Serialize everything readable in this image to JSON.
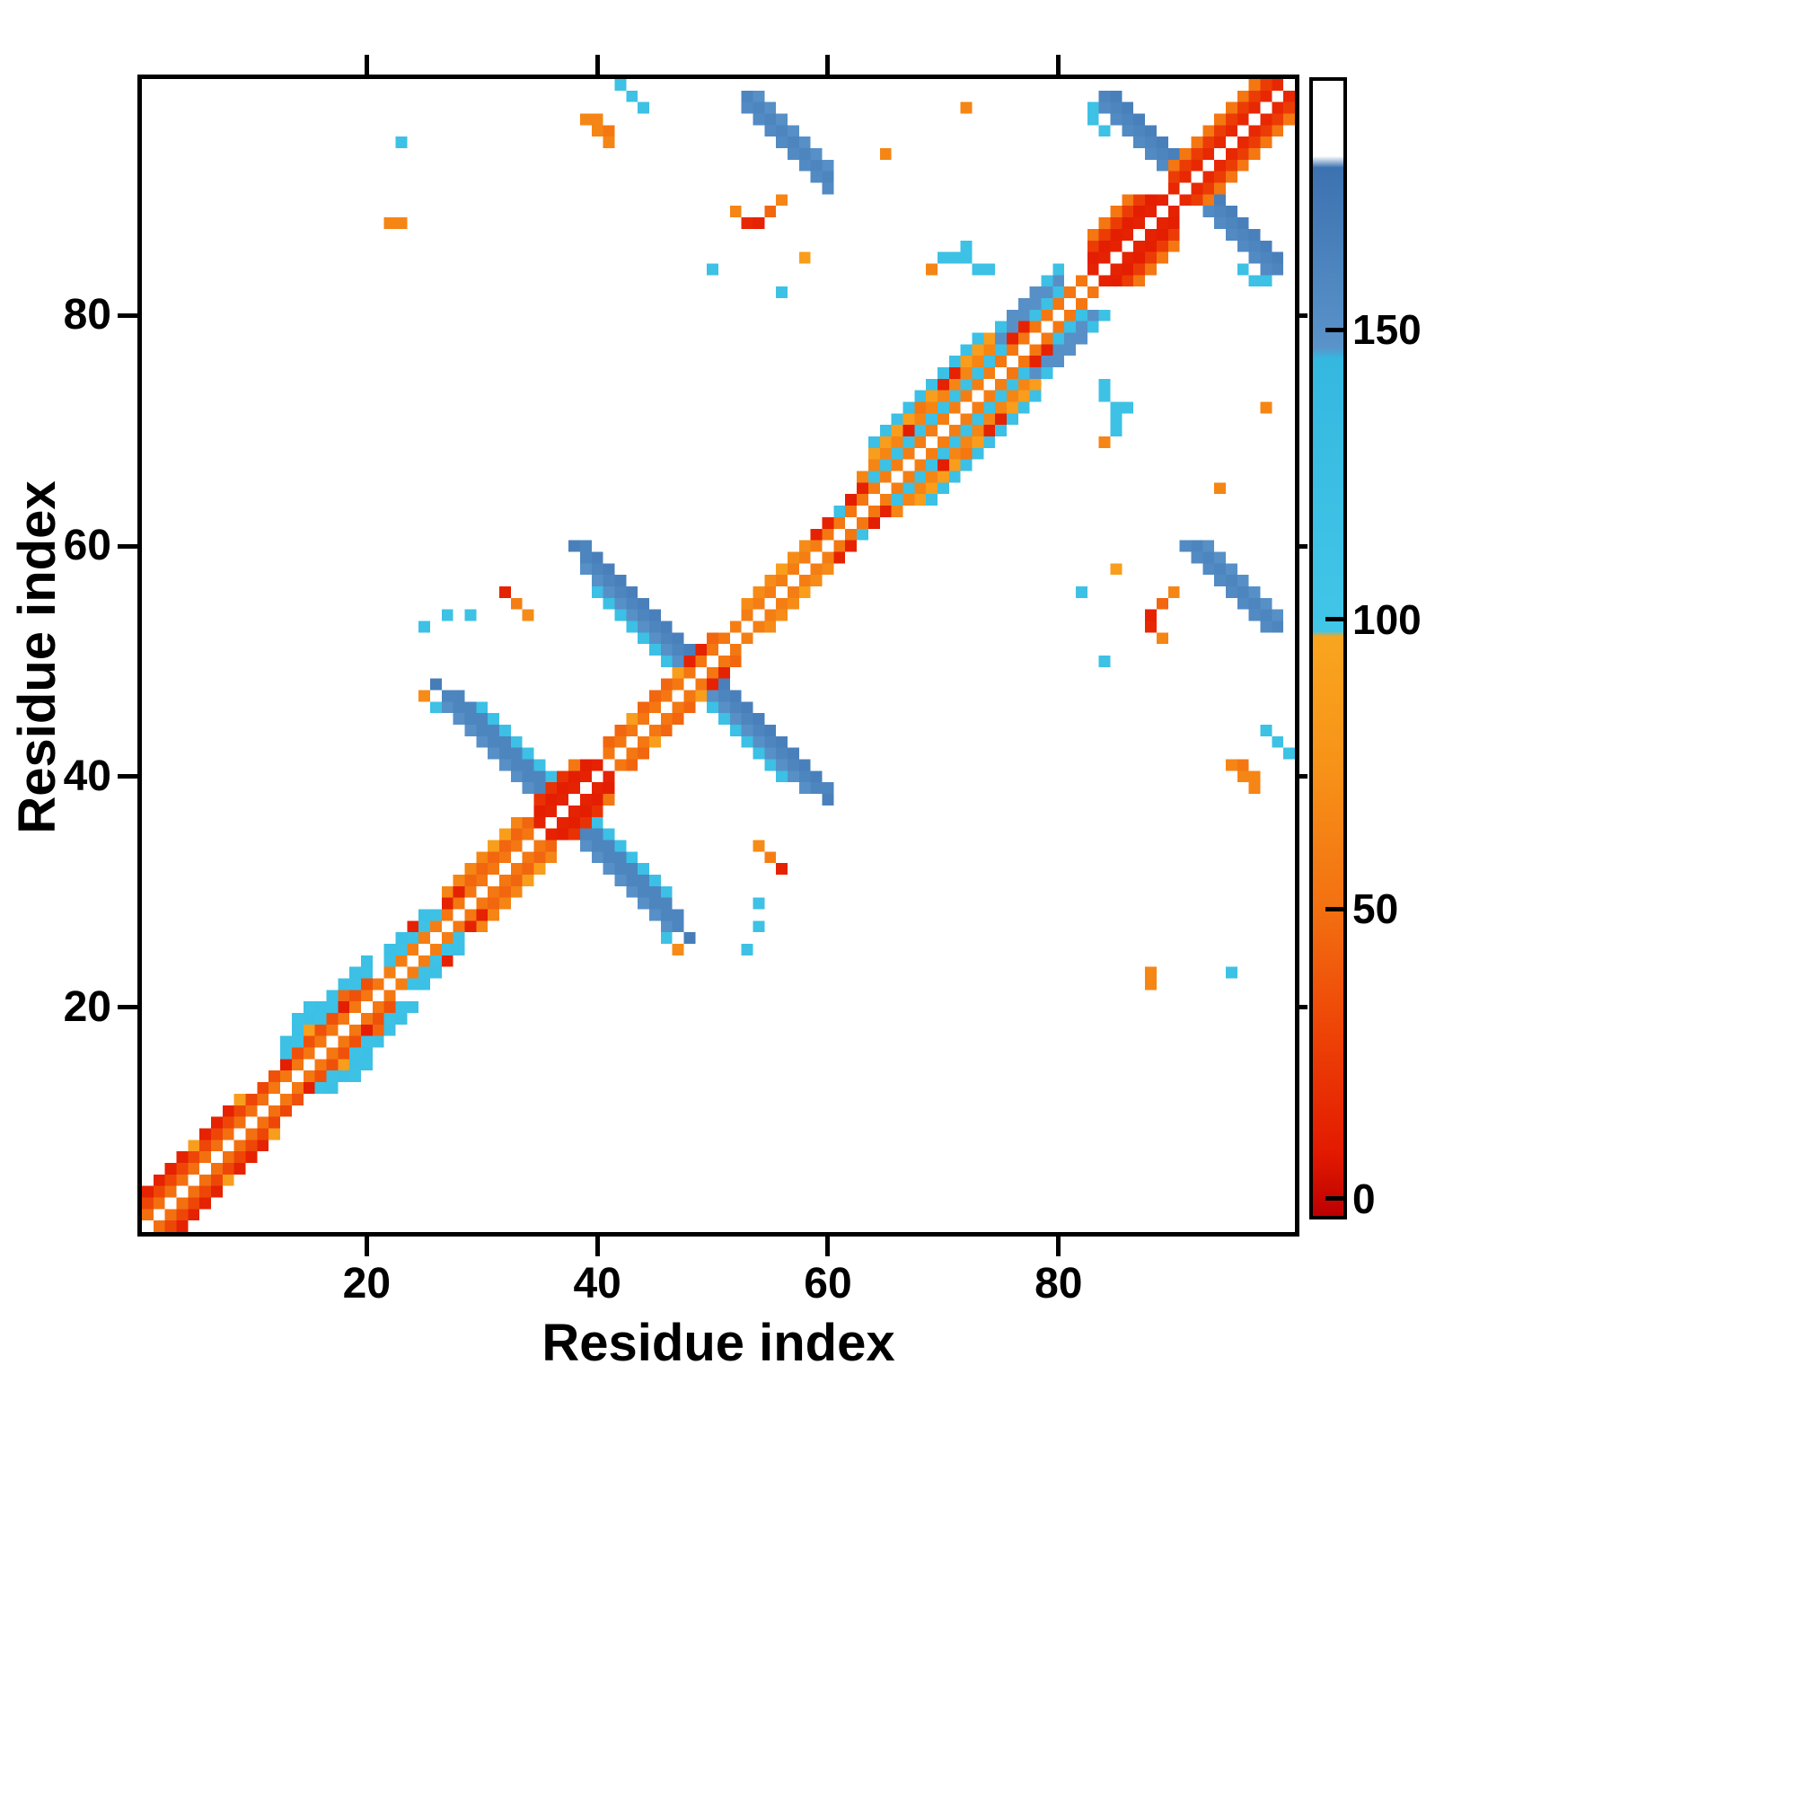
{
  "chart_data": {
    "type": "heatmap",
    "title": "",
    "xlabel": "Residue index",
    "ylabel": "Residue index",
    "x_range": [
      1,
      100
    ],
    "y_range": [
      1,
      100
    ],
    "x_ticks": [
      20,
      40,
      60,
      80
    ],
    "y_ticks": [
      20,
      40,
      60,
      80
    ],
    "grid": false,
    "symmetric": true,
    "empty_color": "#ffffff",
    "colorbar": {
      "position": "right",
      "ticks": [
        0,
        50,
        100,
        150
      ],
      "range": [
        -3,
        193
      ],
      "stops": [
        [
          -3,
          "#bc0000"
        ],
        [
          8,
          "#e31a00"
        ],
        [
          30,
          "#ee4607"
        ],
        [
          50,
          "#f37011"
        ],
        [
          75,
          "#f79318"
        ],
        [
          97,
          "#f9a51f"
        ],
        [
          98,
          "#41c6e8"
        ],
        [
          145,
          "#35b8e0"
        ],
        [
          147,
          "#5a93ca"
        ],
        [
          178,
          "#3c72b0"
        ],
        [
          180,
          "#ffffff"
        ],
        [
          193,
          "#ffffff"
        ]
      ]
    },
    "runs": [
      {
        "i": 27,
        "j": 46,
        "dir": "a",
        "len": 20,
        "v": 150
      },
      {
        "i": 27,
        "j": 47,
        "dir": "a",
        "len": 21,
        "v": 160
      },
      {
        "i": 28,
        "j": 47,
        "dir": "a",
        "len": 20,
        "v": 160
      },
      {
        "i": 30,
        "j": 46,
        "dir": "a",
        "len": 17,
        "v": 118
      },
      {
        "i": 39,
        "j": 58,
        "dir": "a",
        "len": 20,
        "v": 150
      },
      {
        "i": 39,
        "j": 59,
        "dir": "a",
        "len": 21,
        "v": 160
      },
      {
        "i": 40,
        "j": 59,
        "dir": "a",
        "len": 20,
        "v": 165
      },
      {
        "i": 40,
        "j": 56,
        "dir": "a",
        "len": 13,
        "v": 118
      },
      {
        "i": 84,
        "j": 98,
        "dir": "a",
        "len": 15,
        "v": 155
      },
      {
        "i": 84,
        "j": 99,
        "dir": "a",
        "len": 16,
        "v": 160
      },
      {
        "i": 85,
        "j": 99,
        "dir": "a",
        "len": 15,
        "v": 165
      },
      {
        "i": 53,
        "j": 98,
        "dir": "a",
        "len": 8,
        "v": 155
      },
      {
        "i": 53,
        "j": 99,
        "dir": "a",
        "len": 8,
        "v": 160
      },
      {
        "i": 54,
        "j": 99,
        "dir": "a",
        "len": 7,
        "v": 150
      },
      {
        "i": 2,
        "j": 1,
        "dir": "d",
        "len": 12,
        "v": 50
      },
      {
        "i": 3,
        "j": 1,
        "dir": "d",
        "len": 11,
        "v": 30
      },
      {
        "i": 4,
        "j": 1,
        "dir": "d",
        "len": 9,
        "v": 12
      },
      {
        "i": 13,
        "j": 12,
        "dir": "d",
        "len": 10,
        "v": 55
      },
      {
        "i": 14,
        "j": 12,
        "dir": "d",
        "len": 9,
        "v": 35
      },
      {
        "i": 16,
        "j": 13,
        "dir": "d",
        "len": 8,
        "v": 115
      },
      {
        "i": 17,
        "j": 13,
        "dir": "d",
        "len": 8,
        "v": 118
      },
      {
        "i": 24,
        "j": 22,
        "dir": "d",
        "len": 5,
        "v": 115
      },
      {
        "i": 25,
        "j": 22,
        "dir": "d",
        "len": 4,
        "v": 118
      },
      {
        "i": 23,
        "j": 22,
        "dir": "d",
        "len": 6,
        "v": 60
      },
      {
        "i": 28,
        "j": 27,
        "dir": "d",
        "len": 9,
        "v": 55
      },
      {
        "i": 29,
        "j": 27,
        "dir": "d",
        "len": 8,
        "v": 45
      },
      {
        "i": 30,
        "j": 27,
        "dir": "d",
        "len": 7,
        "v": 65
      },
      {
        "i": 36,
        "j": 35,
        "dir": "d",
        "len": 6,
        "v": 12
      },
      {
        "i": 37,
        "j": 35,
        "dir": "d",
        "len": 5,
        "v": 10
      },
      {
        "i": 38,
        "j": 35,
        "dir": "d",
        "len": 4,
        "v": 20
      },
      {
        "i": 42,
        "j": 41,
        "dir": "d",
        "len": 11,
        "v": 55
      },
      {
        "i": 43,
        "j": 41,
        "dir": "d",
        "len": 10,
        "v": 45
      },
      {
        "i": 53,
        "j": 52,
        "dir": "d",
        "len": 10,
        "v": 60
      },
      {
        "i": 55,
        "j": 53,
        "dir": "d",
        "len": 7,
        "v": 70
      },
      {
        "i": 62,
        "j": 60,
        "dir": "d",
        "len": 5,
        "v": 115
      },
      {
        "i": 61,
        "j": 60,
        "dir": "d",
        "len": 6,
        "v": 55
      },
      {
        "i": 65,
        "j": 64,
        "dir": "d",
        "len": 14,
        "v": 60
      },
      {
        "i": 66,
        "j": 64,
        "dir": "d",
        "len": 13,
        "v": 115
      },
      {
        "i": 67,
        "j": 64,
        "dir": "d",
        "len": 12,
        "v": 65
      },
      {
        "i": 68,
        "j": 64,
        "dir": "d",
        "len": 11,
        "v": 88
      },
      {
        "i": 69,
        "j": 64,
        "dir": "d",
        "len": 10,
        "v": 118
      },
      {
        "i": 77,
        "j": 75,
        "dir": "d",
        "len": 6,
        "v": 118
      },
      {
        "i": 78,
        "j": 75,
        "dir": "d",
        "len": 6,
        "v": 150
      },
      {
        "i": 79,
        "j": 75,
        "dir": "d",
        "len": 5,
        "v": 118
      },
      {
        "i": 80,
        "j": 76,
        "dir": "d",
        "len": 3,
        "v": 150
      },
      {
        "i": 76,
        "j": 75,
        "dir": "d",
        "len": 8,
        "v": 55
      },
      {
        "i": 84,
        "j": 83,
        "dir": "d",
        "len": 7,
        "v": 12
      },
      {
        "i": 85,
        "j": 83,
        "dir": "d",
        "len": 6,
        "v": 10
      },
      {
        "i": 86,
        "j": 83,
        "dir": "d",
        "len": 5,
        "v": 25
      },
      {
        "i": 87,
        "j": 83,
        "dir": "d",
        "len": 4,
        "v": 55
      },
      {
        "i": 91,
        "j": 90,
        "dir": "d",
        "len": 10,
        "v": 15
      },
      {
        "i": 92,
        "j": 90,
        "dir": "d",
        "len": 9,
        "v": 25
      },
      {
        "i": 93,
        "j": 90,
        "dir": "d",
        "len": 8,
        "v": 55
      }
    ],
    "points": [
      [
        8,
        5,
        88
      ],
      [
        12,
        9,
        88
      ],
      [
        15,
        13,
        10
      ],
      [
        18,
        15,
        88
      ],
      [
        19,
        14,
        115
      ],
      [
        20,
        15,
        115
      ],
      [
        20,
        18,
        10
      ],
      [
        21,
        18,
        45
      ],
      [
        27,
        24,
        12
      ],
      [
        29,
        27,
        12
      ],
      [
        30,
        28,
        12
      ],
      [
        34,
        31,
        88
      ],
      [
        35,
        32,
        88
      ],
      [
        22,
        88,
        65
      ],
      [
        23,
        88,
        65
      ],
      [
        23,
        95,
        115
      ],
      [
        25,
        47,
        70
      ],
      [
        26,
        46,
        115
      ],
      [
        48,
        26,
        168
      ],
      [
        27,
        54,
        115
      ],
      [
        29,
        54,
        115
      ],
      [
        32,
        56,
        12
      ],
      [
        33,
        55,
        60
      ],
      [
        34,
        54,
        70
      ],
      [
        53,
        25,
        115
      ],
      [
        39,
        97,
        65
      ],
      [
        40,
        97,
        65
      ],
      [
        40,
        96,
        65
      ],
      [
        41,
        96,
        55
      ],
      [
        41,
        95,
        65
      ],
      [
        42,
        100,
        115
      ],
      [
        43,
        99,
        115
      ],
      [
        44,
        98,
        115
      ],
      [
        41,
        38,
        55
      ],
      [
        45,
        43,
        88
      ],
      [
        49,
        47,
        88
      ],
      [
        50,
        48,
        12
      ],
      [
        51,
        49,
        12
      ],
      [
        50,
        84,
        115
      ],
      [
        52,
        89,
        65
      ],
      [
        53,
        88,
        15
      ],
      [
        54,
        88,
        65
      ],
      [
        56,
        82,
        115
      ],
      [
        58,
        56,
        88
      ],
      [
        60,
        38,
        165
      ],
      [
        60,
        39,
        160
      ],
      [
        61,
        59,
        12
      ],
      [
        62,
        60,
        12
      ],
      [
        64,
        62,
        10
      ],
      [
        65,
        63,
        12
      ],
      [
        66,
        63,
        65
      ],
      [
        70,
        67,
        10
      ],
      [
        72,
        68,
        55
      ],
      [
        74,
        70,
        12
      ],
      [
        75,
        71,
        12
      ],
      [
        69,
        84,
        65
      ],
      [
        70,
        85,
        115
      ],
      [
        71,
        85,
        115
      ],
      [
        73,
        84,
        115
      ],
      [
        74,
        84,
        115
      ],
      [
        78,
        76,
        12
      ],
      [
        79,
        77,
        12
      ],
      [
        84,
        80,
        115
      ],
      [
        83,
        97,
        115
      ],
      [
        83,
        98,
        115
      ],
      [
        84,
        96,
        115
      ],
      [
        85,
        58,
        88
      ],
      [
        88,
        54,
        12
      ],
      [
        89,
        55,
        45
      ],
      [
        90,
        56,
        65
      ],
      [
        85,
        72,
        115
      ],
      [
        86,
        72,
        115
      ],
      [
        94,
        65,
        65
      ],
      [
        98,
        72,
        65
      ]
    ]
  }
}
